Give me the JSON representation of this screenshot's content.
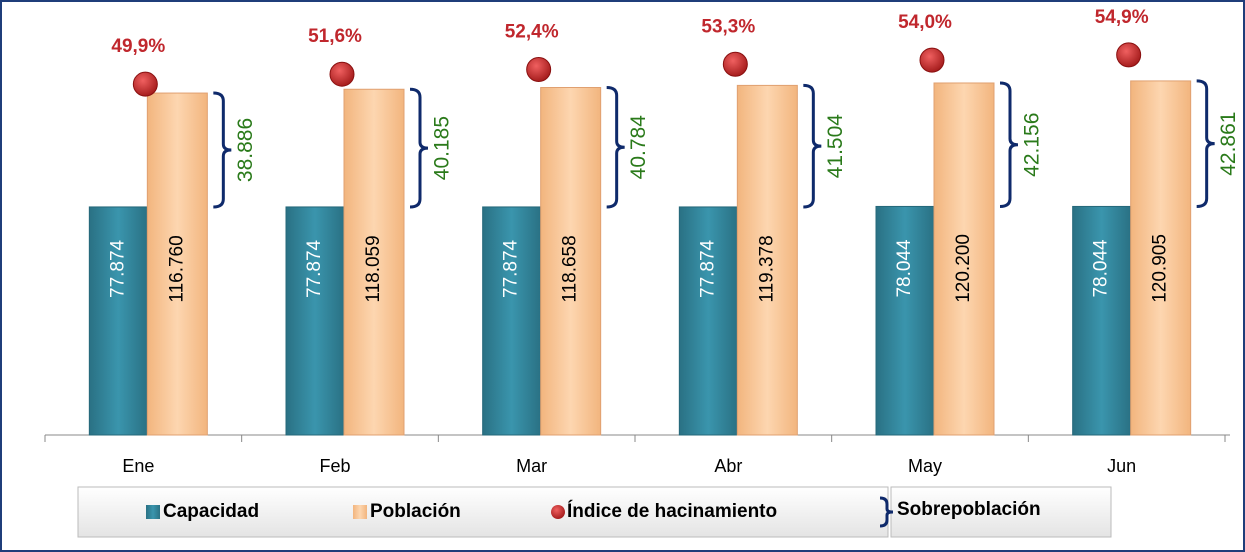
{
  "chart_data": {
    "type": "bar",
    "categories": [
      "Ene",
      "Feb",
      "Mar",
      "Abr",
      "May",
      "Jun"
    ],
    "ylim": [
      0,
      140000
    ],
    "y2lim": [
      -10,
      60
    ],
    "series": [
      {
        "name": "Capacidad",
        "color": "#31859c",
        "values": [
          77874,
          77874,
          77874,
          77874,
          78044,
          78044
        ],
        "value_labels": [
          "77.874",
          "77.874",
          "77.874",
          "77.874",
          "78.044",
          "78.044"
        ]
      },
      {
        "name": "Población",
        "color": "#fac090",
        "values": [
          116760,
          118059,
          118658,
          119378,
          120200,
          120905
        ],
        "value_labels": [
          "116.760",
          "118.059",
          "118.658",
          "119.378",
          "120.200",
          "120.905"
        ]
      },
      {
        "name": "Índice de hacinamiento",
        "color": "#c0272d",
        "axis": "y2",
        "values": [
          49.9,
          51.6,
          52.4,
          53.3,
          54.0,
          54.9
        ],
        "value_labels": [
          "49,9%",
          "51,6%",
          "52,4%",
          "53,3%",
          "54,0%",
          "54,9%"
        ]
      },
      {
        "name": "Sobrepoblación",
        "color": "#0f2a6b",
        "values": [
          38886,
          40185,
          40784,
          41504,
          42156,
          42861
        ],
        "value_labels": [
          "38.886",
          "40.185",
          "40.784",
          "41.504",
          "42.156",
          "42.861"
        ]
      }
    ]
  }
}
